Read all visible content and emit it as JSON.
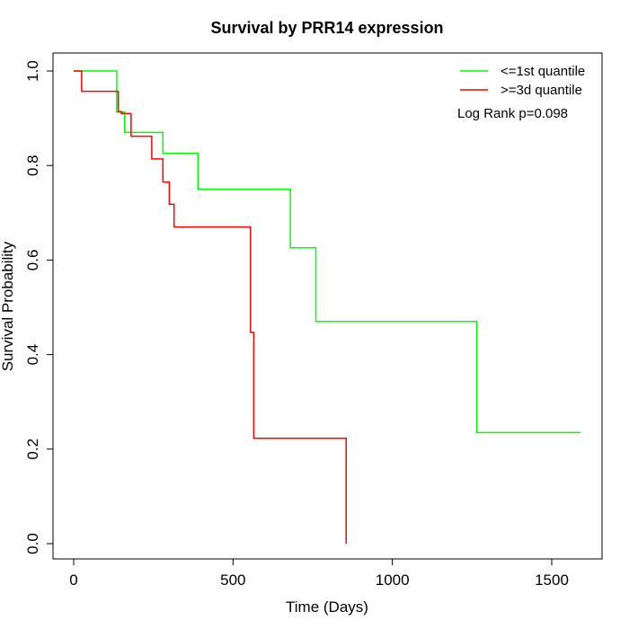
{
  "chart_data": {
    "type": "line",
    "title": "Survival by PRR14 expression",
    "xlabel": "Time (Days)",
    "ylabel": "Survival Probability",
    "xlim": [
      0,
      1600
    ],
    "ylim": [
      0,
      1.0
    ],
    "x_ticks": [
      0,
      500,
      1000,
      1500
    ],
    "x_tick_labels": [
      "0",
      "500",
      "1000",
      "1500"
    ],
    "y_ticks": [
      0.0,
      0.2,
      0.4,
      0.6,
      0.8,
      1.0
    ],
    "y_tick_labels": [
      "0.0",
      "0.2",
      "0.4",
      "0.6",
      "0.8",
      "1.0"
    ],
    "step": true,
    "grid": false,
    "legend_position": "top-right",
    "annotation": "Log Rank p=0.098",
    "series": [
      {
        "name": "<=1st quantile",
        "color": "#00ff00",
        "x": [
          0,
          130,
          135,
          160,
          280,
          390,
          680,
          760,
          1265,
          1590
        ],
        "y": [
          1.0,
          1.0,
          0.913,
          0.87,
          0.826,
          0.75,
          0.626,
          0.47,
          0.235,
          0.235
        ]
      },
      {
        "name": ">=3d quantile",
        "color": "#ff0000",
        "x": [
          0,
          25,
          140,
          150,
          180,
          245,
          280,
          300,
          315,
          555,
          565,
          855,
          855
        ],
        "y": [
          1.0,
          0.957,
          0.914,
          0.91,
          0.862,
          0.814,
          0.765,
          0.718,
          0.67,
          0.447,
          0.223,
          0.223,
          0.0
        ]
      }
    ]
  }
}
